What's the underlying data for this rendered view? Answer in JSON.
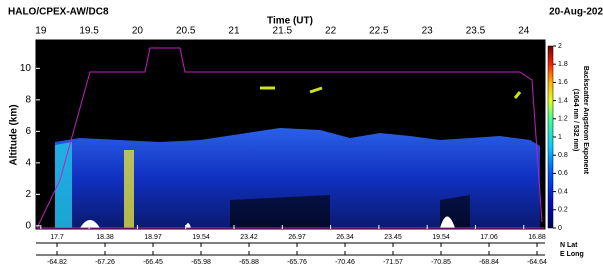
{
  "chart_data": {
    "type": "curtain",
    "title": "HALO/CPEX-AW/DC8",
    "date": "20-Aug-202",
    "xlabel": "Time (UT)",
    "ylabel": "Altitude (km)",
    "xlim": [
      18.95,
      24.22
    ],
    "xticks": [
      19,
      19.5,
      20,
      20.5,
      21,
      21.5,
      22,
      22.5,
      23,
      23.5,
      24
    ],
    "ylim": [
      -0.2,
      11.8
    ],
    "yticks": [
      0,
      2,
      4,
      6,
      8,
      10
    ],
    "colorbar_label": [
      "Backscatter Angstrom Exponent",
      "(1064 nm / 532 nm)"
    ],
    "clim": [
      0,
      2
    ],
    "cticks": [
      0,
      0.2,
      0.4,
      0.6,
      0.8,
      1,
      1.2,
      1.4,
      1.6,
      1.8,
      2
    ],
    "lat_label": "N Lat",
    "lon_label": "E Long",
    "lat": [
      17.7,
      18.38,
      18.97,
      19.54,
      23.42,
      26.97,
      26.34,
      23.45,
      19.54,
      17.06,
      16.88
    ],
    "lon": [
      -64.82,
      -67.26,
      -66.45,
      -65.98,
      -65.88,
      -65.76,
      -70.46,
      -71.57,
      -70.85,
      -68.84,
      -64.64
    ]
  }
}
